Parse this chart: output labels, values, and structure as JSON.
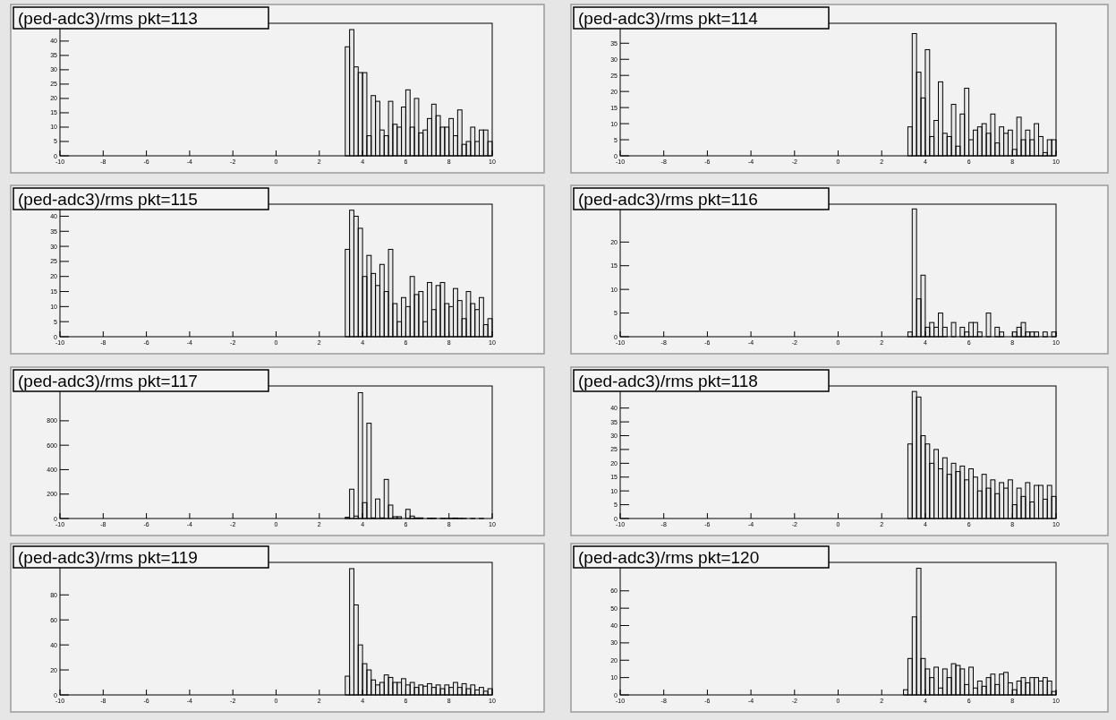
{
  "chart_data": [
    {
      "type": "histogram",
      "title": "(ped-adc3)/rms pkt=113",
      "color": "#000000",
      "xlim": [
        -10,
        10
      ],
      "xticks": [
        -10,
        -8,
        -6,
        -4,
        -2,
        0,
        2,
        4,
        6,
        8,
        10
      ],
      "ylim": [
        0,
        46.2
      ],
      "yticks": [
        0,
        5,
        10,
        15,
        20,
        25,
        30,
        35,
        40
      ],
      "bins": [
        3.2,
        3.4,
        3.6,
        3.8,
        4.0,
        4.2,
        4.4,
        4.6,
        4.8,
        5.0,
        5.2,
        5.4,
        5.6,
        5.8,
        6.0,
        6.2,
        6.4,
        6.6,
        6.8,
        7.0,
        7.2,
        7.4,
        7.6,
        7.8,
        8.0,
        8.2,
        8.4,
        8.6,
        8.8,
        9.0,
        9.2,
        9.4,
        9.6,
        9.8,
        10.0
      ],
      "values": [
        38,
        44,
        31,
        29,
        29,
        7,
        21,
        19,
        9,
        7,
        19,
        11,
        10,
        17,
        23,
        10,
        20,
        8,
        9,
        13,
        18,
        14,
        10,
        10,
        13,
        7,
        16,
        4,
        5,
        10,
        5,
        9,
        9,
        5
      ]
    },
    {
      "type": "histogram",
      "title": "(ped-adc3)/rms pkt=114",
      "color": "#000000",
      "xlim": [
        -10,
        10
      ],
      "xticks": [
        -10,
        -8,
        -6,
        -4,
        -2,
        0,
        2,
        4,
        6,
        8,
        10
      ],
      "ylim": [
        0,
        41.2
      ],
      "yticks": [
        0,
        5,
        10,
        15,
        20,
        25,
        30,
        35
      ],
      "bins": [
        3.2,
        3.4,
        3.6,
        3.8,
        4.0,
        4.2,
        4.4,
        4.6,
        4.8,
        5.0,
        5.2,
        5.4,
        5.6,
        5.8,
        6.0,
        6.2,
        6.4,
        6.6,
        6.8,
        7.0,
        7.2,
        7.4,
        7.6,
        7.8,
        8.0,
        8.2,
        8.4,
        8.6,
        8.8,
        9.0,
        9.2,
        9.4,
        9.6,
        9.8,
        10.0
      ],
      "values": [
        9,
        38,
        26,
        18,
        33,
        6,
        11,
        23,
        7,
        6,
        16,
        3,
        13,
        21,
        5,
        8,
        9,
        10,
        7,
        13,
        4,
        9,
        7,
        8,
        2,
        12,
        5,
        8,
        5,
        10,
        6,
        1,
        5,
        5
      ]
    },
    {
      "type": "histogram",
      "title": "(ped-adc3)/rms pkt=115",
      "color": "#000000",
      "xlim": [
        -10,
        10
      ],
      "xticks": [
        -10,
        -8,
        -6,
        -4,
        -2,
        0,
        2,
        4,
        6,
        8,
        10
      ],
      "ylim": [
        0,
        44
      ],
      "yticks": [
        0,
        5,
        10,
        15,
        20,
        25,
        30,
        35,
        40
      ],
      "bins": [
        3.2,
        3.4,
        3.6,
        3.8,
        4.0,
        4.2,
        4.4,
        4.6,
        4.8,
        5.0,
        5.2,
        5.4,
        5.6,
        5.8,
        6.0,
        6.2,
        6.4,
        6.6,
        6.8,
        7.0,
        7.2,
        7.4,
        7.6,
        7.8,
        8.0,
        8.2,
        8.4,
        8.6,
        8.8,
        9.0,
        9.2,
        9.4,
        9.6,
        9.8,
        10.0
      ],
      "values": [
        29,
        42,
        40,
        36,
        20,
        27,
        21,
        17,
        24,
        15,
        29,
        11,
        5,
        13,
        10,
        20,
        14,
        15,
        5,
        18,
        9,
        17,
        18,
        11,
        10,
        16,
        12,
        6,
        15,
        11,
        9,
        13,
        4,
        6
      ]
    },
    {
      "type": "histogram",
      "title": "(ped-adc3)/rms pkt=116",
      "color": "#000000",
      "xlim": [
        -10,
        10
      ],
      "xticks": [
        -10,
        -8,
        -6,
        -4,
        -2,
        0,
        2,
        4,
        6,
        8,
        10
      ],
      "ylim": [
        0,
        28
      ],
      "yticks": [
        0,
        5,
        10,
        15,
        20
      ],
      "bins": [
        3.2,
        3.4,
        3.6,
        3.8,
        4.0,
        4.2,
        4.4,
        4.6,
        4.8,
        5.0,
        5.2,
        5.4,
        5.6,
        5.8,
        6.0,
        6.2,
        6.4,
        6.6,
        6.8,
        7.0,
        7.2,
        7.4,
        7.6,
        7.8,
        8.0,
        8.2,
        8.4,
        8.6,
        8.8,
        9.0,
        9.2,
        9.4,
        9.6,
        9.8,
        10.0
      ],
      "values": [
        1,
        27,
        8,
        13,
        2,
        3,
        2,
        5,
        2,
        0,
        3,
        0,
        2,
        1,
        3,
        3,
        1,
        0,
        5,
        0,
        2,
        1,
        0,
        0,
        1,
        2,
        3,
        1,
        1,
        1,
        0,
        1,
        0,
        1
      ]
    },
    {
      "type": "histogram",
      "title": "(ped-adc3)/rms pkt=117",
      "color": "#000000",
      "xlim": [
        -10,
        10
      ],
      "xticks": [
        -10,
        -8,
        -6,
        -4,
        -2,
        0,
        2,
        4,
        6,
        8,
        10
      ],
      "ylim": [
        0,
        1085
      ],
      "yticks": [
        0,
        200,
        400,
        600,
        800
      ],
      "bins": [
        3.2,
        3.4,
        3.6,
        3.8,
        4.0,
        4.2,
        4.4,
        4.6,
        4.8,
        5.0,
        5.2,
        5.4,
        5.6,
        5.8,
        6.0,
        6.2,
        6.4,
        6.6,
        6.8,
        7.0,
        7.2,
        7.4,
        7.6,
        7.8,
        8.0,
        8.2,
        8.4,
        8.6,
        8.8,
        9.0,
        9.2,
        9.4,
        9.6,
        9.8,
        10.0
      ],
      "values": [
        10,
        240,
        20,
        1030,
        130,
        780,
        5,
        160,
        5,
        320,
        110,
        15,
        15,
        0,
        75,
        20,
        5,
        5,
        0,
        3,
        3,
        0,
        2,
        1,
        2,
        4,
        2,
        1,
        0,
        1,
        0,
        1,
        0,
        0
      ]
    },
    {
      "type": "histogram",
      "title": "(ped-adc3)/rms pkt=118",
      "color": "#000000",
      "xlim": [
        -10,
        10
      ],
      "xticks": [
        -10,
        -8,
        -6,
        -4,
        -2,
        0,
        2,
        4,
        6,
        8,
        10
      ],
      "ylim": [
        0,
        48
      ],
      "yticks": [
        0,
        5,
        10,
        15,
        20,
        25,
        30,
        35,
        40
      ],
      "bins": [
        3.2,
        3.4,
        3.6,
        3.8,
        4.0,
        4.2,
        4.4,
        4.6,
        4.8,
        5.0,
        5.2,
        5.4,
        5.6,
        5.8,
        6.0,
        6.2,
        6.4,
        6.6,
        6.8,
        7.0,
        7.2,
        7.4,
        7.6,
        7.8,
        8.0,
        8.2,
        8.4,
        8.6,
        8.8,
        9.0,
        9.2,
        9.4,
        9.6,
        9.8,
        10.0
      ],
      "values": [
        27,
        46,
        44,
        30,
        27,
        20,
        25,
        18,
        22,
        16,
        20,
        17,
        19,
        14,
        18,
        15,
        10,
        16,
        11,
        14,
        9,
        13,
        11,
        14,
        5,
        11,
        8,
        13,
        6,
        12,
        12,
        7,
        12,
        8
      ]
    },
    {
      "type": "histogram",
      "title": "(ped-adc3)/rms pkt=119",
      "color": "#000000",
      "xlim": [
        -10,
        10
      ],
      "xticks": [
        -10,
        -8,
        -6,
        -4,
        -2,
        0,
        2,
        4,
        6,
        8,
        10
      ],
      "ylim": [
        0,
        106
      ],
      "yticks": [
        0,
        20,
        40,
        60,
        80
      ],
      "bins": [
        3.2,
        3.4,
        3.6,
        3.8,
        4.0,
        4.2,
        4.4,
        4.6,
        4.8,
        5.0,
        5.2,
        5.4,
        5.6,
        5.8,
        6.0,
        6.2,
        6.4,
        6.6,
        6.8,
        7.0,
        7.2,
        7.4,
        7.6,
        7.8,
        8.0,
        8.2,
        8.4,
        8.6,
        8.8,
        9.0,
        9.2,
        9.4,
        9.6,
        9.8,
        10.0
      ],
      "values": [
        15,
        101,
        72,
        40,
        25,
        20,
        12,
        8,
        10,
        16,
        14,
        10,
        10,
        13,
        8,
        10,
        6,
        8,
        7,
        9,
        6,
        8,
        5,
        8,
        6,
        10,
        6,
        9,
        5,
        8,
        4,
        6,
        3,
        5
      ]
    },
    {
      "type": "histogram",
      "title": "(ped-adc3)/rms pkt=120",
      "color": "#000000",
      "xlim": [
        -10,
        10
      ],
      "xticks": [
        -10,
        -8,
        -6,
        -4,
        -2,
        0,
        2,
        4,
        6,
        8,
        10
      ],
      "ylim": [
        0,
        76.4
      ],
      "yticks": [
        0,
        10,
        20,
        30,
        40,
        50,
        60
      ],
      "bins": [
        3.0,
        3.2,
        3.4,
        3.6,
        3.8,
        4.0,
        4.2,
        4.4,
        4.6,
        4.8,
        5.0,
        5.2,
        5.4,
        5.6,
        5.8,
        6.0,
        6.2,
        6.4,
        6.6,
        6.8,
        7.0,
        7.2,
        7.4,
        7.6,
        7.8,
        8.0,
        8.2,
        8.4,
        8.6,
        8.8,
        9.0,
        9.2,
        9.4,
        9.6,
        9.8,
        10.0
      ],
      "values": [
        3,
        21,
        45,
        73,
        21,
        15,
        10,
        16,
        4,
        15,
        10,
        18,
        17,
        15,
        6,
        16,
        4,
        8,
        5,
        10,
        12,
        6,
        12,
        13,
        7,
        3,
        8,
        10,
        7,
        10,
        10,
        8,
        10,
        8,
        2
      ]
    }
  ]
}
